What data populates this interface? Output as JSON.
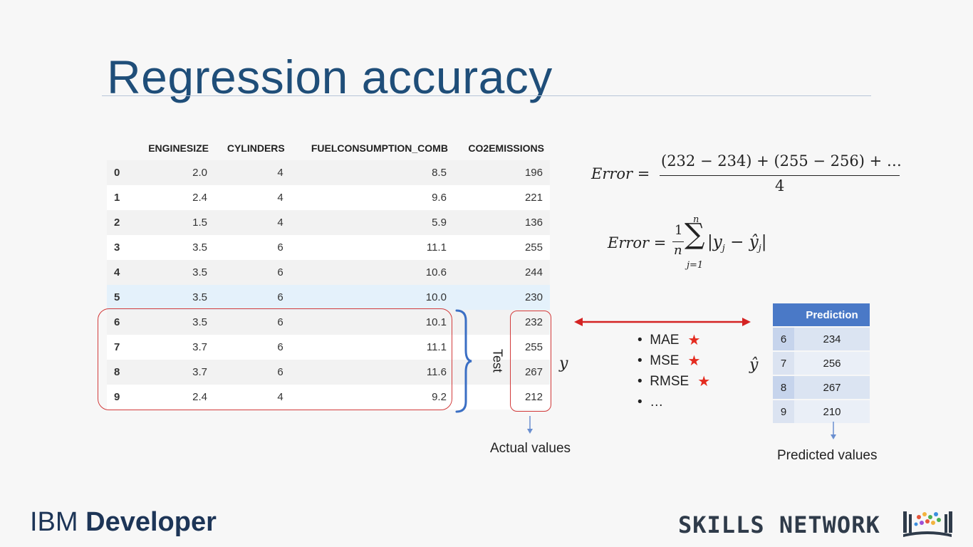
{
  "slide": {
    "title": "Regression accuracy"
  },
  "table": {
    "headers": [
      "",
      "ENGINESIZE",
      "CYLINDERS",
      "FUELCONSUMPTION_COMB",
      "CO2EMISSIONS"
    ],
    "rows": [
      [
        "0",
        "2.0",
        "4",
        "8.5",
        "196"
      ],
      [
        "1",
        "2.4",
        "4",
        "9.6",
        "221"
      ],
      [
        "2",
        "1.5",
        "4",
        "5.9",
        "136"
      ],
      [
        "3",
        "3.5",
        "6",
        "11.1",
        "255"
      ],
      [
        "4",
        "3.5",
        "6",
        "10.6",
        "244"
      ],
      [
        "5",
        "3.5",
        "6",
        "10.0",
        "230"
      ],
      [
        "6",
        "3.5",
        "6",
        "10.1",
        "232"
      ],
      [
        "7",
        "3.7",
        "6",
        "11.1",
        "255"
      ],
      [
        "8",
        "3.7",
        "6",
        "11.6",
        "267"
      ],
      [
        "9",
        "2.4",
        "4",
        "9.2",
        "212"
      ]
    ],
    "highlighted_row": 5
  },
  "labels": {
    "test": "Test",
    "y": "y",
    "y_hat": "ŷ",
    "actual_values": "Actual values",
    "predicted_values": "Predicted values"
  },
  "formulas": {
    "error1_lhs": "Error =",
    "error1_numerator": "(232 − 234) + (255 − 256) +  …",
    "error1_denominator": "4",
    "error2_lhs": "Error =",
    "error2_frac_num": "1",
    "error2_frac_den": "n",
    "error2_sum_top": "n",
    "error2_sum_bottom": "j=1",
    "error2_body": "|y",
    "error2_sub_j": "j",
    "error2_minus": " − ",
    "error2_body2": "ŷ",
    "error2_end": "|"
  },
  "metrics": [
    {
      "label": "MAE",
      "starred": true
    },
    {
      "label": "MSE",
      "starred": true
    },
    {
      "label": "RMSE",
      "starred": true
    },
    {
      "label": "…",
      "starred": false
    }
  ],
  "prediction_table": {
    "header": "Prediction",
    "rows": [
      [
        "6",
        "234"
      ],
      [
        "7",
        "256"
      ],
      [
        "8",
        "267"
      ],
      [
        "9",
        "210"
      ]
    ]
  },
  "footer": {
    "ibm_light": "IBM ",
    "ibm_bold": "Developer",
    "skills_network": "SKILLS NETWORK"
  },
  "colors": {
    "title": "#1f4e79",
    "outline_red": "#d23b3b",
    "brace_blue": "#3b6fc4",
    "star_red": "#e42b1f",
    "table_header_blue": "#4a79c7"
  }
}
